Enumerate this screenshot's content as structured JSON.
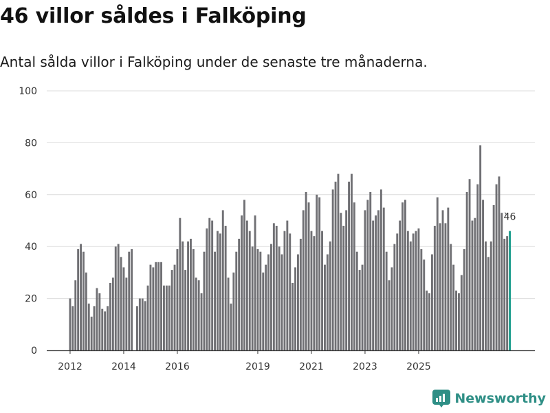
{
  "header": {
    "title": "46 villor såldes i Falköping",
    "subtitle": "Antal sålda villor i Falköping under de senaste tre månaderna."
  },
  "brand": {
    "name": "Newsworthy",
    "logo_icon": "newsworthy-logo-icon"
  },
  "colors": {
    "bar": "#707074",
    "highlight": "#1a9c8c",
    "grid": "#dcdcdc",
    "axis": "#333333"
  },
  "chart_data": {
    "type": "bar",
    "title": "46 villor såldes i Falköping",
    "xlabel": "",
    "ylabel": "",
    "ylim": [
      0,
      100
    ],
    "yticks": [
      "0",
      "20",
      "40",
      "60",
      "80",
      "100"
    ],
    "xticks": [
      {
        "label": "2012",
        "index": 0
      },
      {
        "label": "2014",
        "index": 20
      },
      {
        "label": "2016",
        "index": 40
      },
      {
        "label": "2019",
        "index": 70
      },
      {
        "label": "2021",
        "index": 90
      },
      {
        "label": "2023",
        "index": 110
      },
      {
        "label": "2025",
        "index": 130
      }
    ],
    "values": [
      20,
      17,
      27,
      39,
      41,
      38,
      30,
      18,
      13,
      17,
      24,
      22,
      16,
      15,
      17,
      26,
      28,
      40,
      41,
      36,
      32,
      28,
      38,
      39,
      0,
      17,
      20,
      20,
      19,
      25,
      33,
      32,
      34,
      34,
      34,
      25,
      25,
      25,
      31,
      33,
      39,
      51,
      42,
      31,
      42,
      43,
      39,
      28,
      27,
      22,
      38,
      47,
      51,
      50,
      38,
      46,
      45,
      54,
      48,
      28,
      18,
      30,
      38,
      43,
      52,
      58,
      50,
      46,
      40,
      52,
      39,
      38,
      30,
      33,
      37,
      41,
      49,
      48,
      40,
      37,
      46,
      50,
      45,
      26,
      32,
      37,
      43,
      54,
      61,
      57,
      46,
      44,
      60,
      59,
      46,
      33,
      37,
      42,
      62,
      65,
      68,
      53,
      48,
      54,
      65,
      68,
      57,
      38,
      31,
      33,
      54,
      58,
      61,
      50,
      52,
      54,
      62,
      55,
      38,
      27,
      32,
      41,
      45,
      50,
      57,
      58,
      46,
      42,
      45,
      46,
      47,
      39,
      35,
      23,
      22,
      37,
      48,
      59,
      49,
      54,
      49,
      55,
      41,
      33,
      23,
      22,
      29,
      39,
      61,
      66,
      50,
      51,
      64,
      79,
      58,
      42,
      36,
      42,
      56,
      64,
      67,
      53,
      43,
      44,
      46
    ],
    "highlight_index": 164,
    "highlight_label": "46"
  }
}
